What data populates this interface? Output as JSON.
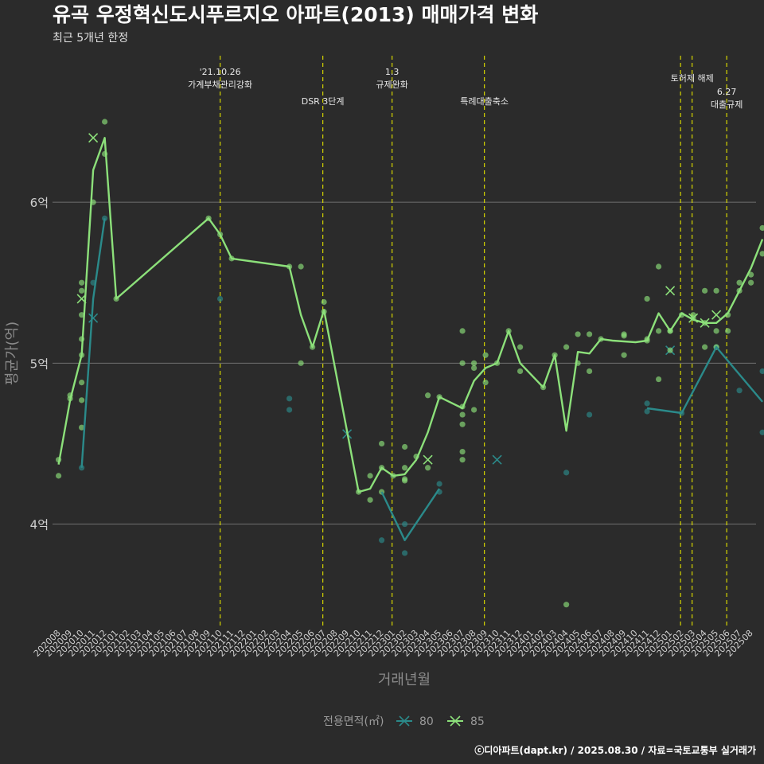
{
  "title": "유곡 우정혁신도시푸르지오 아파트(2013) 매매가격 변화",
  "subtitle": "최근 5개년 한정",
  "caption": "ⓒ디아파트(dapt.kr) / 2025.08.30 / 자료=국토교통부 실거래가",
  "colors": {
    "background": "#2b2b2b",
    "grid": "#707070",
    "vline": "#d4d400",
    "s80": "#2b8a8a",
    "s85": "#8ce07a"
  },
  "chart_data": {
    "type": "line",
    "xlabel": "거래년월",
    "ylabel": "평균가(억)",
    "ylim": [
      3.35,
      6.95
    ],
    "y_ticks": [
      {
        "v": 4,
        "label": "4억"
      },
      {
        "v": 5,
        "label": "5억"
      },
      {
        "v": 6,
        "label": "6억"
      }
    ],
    "categories": [
      "202008",
      "202009",
      "202010",
      "202011",
      "202012",
      "202101",
      "202102",
      "202103",
      "202104",
      "202105",
      "202106",
      "202107",
      "202108",
      "202109",
      "202110",
      "202111",
      "202112",
      "202201",
      "202202",
      "202203",
      "202204",
      "202205",
      "202206",
      "202207",
      "202208",
      "202209",
      "202210",
      "202211",
      "202212",
      "202301",
      "202302",
      "202303",
      "202304",
      "202305",
      "202306",
      "202307",
      "202308",
      "202309",
      "202310",
      "202311",
      "202312",
      "202401",
      "202402",
      "202403",
      "202404",
      "202405",
      "202406",
      "202407",
      "202408",
      "202409",
      "202410",
      "202411",
      "202412",
      "202501",
      "202502",
      "202503",
      "202504",
      "202505",
      "202506",
      "202507",
      "202508"
    ],
    "legend_title": "전용면적(㎡)",
    "series": [
      {
        "name": "80",
        "color": "#2b8a8a",
        "line": [
          [
            2,
            4.35
          ],
          [
            3,
            5.4
          ],
          [
            4,
            5.9
          ],
          null,
          [
            28,
            4.2
          ],
          [
            30,
            3.9
          ],
          [
            33,
            4.22
          ],
          null,
          [
            51,
            4.72
          ],
          [
            54,
            4.69
          ],
          [
            57,
            5.1
          ],
          [
            61,
            4.76
          ]
        ],
        "points": [
          [
            2,
            4.35
          ],
          [
            3,
            5.5
          ],
          [
            4,
            5.9
          ],
          [
            14,
            5.4
          ],
          [
            20,
            4.78
          ],
          [
            20,
            4.71
          ],
          [
            28,
            3.9
          ],
          [
            30,
            4.0
          ],
          [
            30,
            3.82
          ],
          [
            33,
            4.25
          ],
          [
            33,
            4.2
          ],
          [
            44,
            4.32
          ],
          [
            46,
            4.68
          ],
          [
            51,
            4.75
          ],
          [
            51,
            4.7
          ],
          [
            54,
            4.69
          ],
          [
            57,
            5.1
          ],
          [
            59,
            4.83
          ],
          [
            61,
            4.95
          ],
          [
            61,
            4.57
          ]
        ],
        "crosses": [
          [
            3,
            5.28
          ],
          [
            25,
            4.56
          ],
          [
            38,
            4.4
          ],
          [
            53,
            5.08
          ]
        ]
      },
      {
        "name": "85",
        "color": "#8ce07a",
        "line": [
          [
            0,
            4.37
          ],
          [
            1,
            4.77
          ],
          [
            2,
            5.05
          ],
          [
            3,
            6.2
          ],
          [
            4,
            6.4
          ],
          [
            5,
            5.4
          ],
          [
            13,
            5.9
          ],
          [
            14,
            5.8
          ],
          [
            15,
            5.65
          ],
          [
            20,
            5.6
          ],
          [
            21,
            5.3
          ],
          [
            22,
            5.1
          ],
          [
            23,
            5.33
          ],
          [
            26,
            4.2
          ],
          [
            27,
            4.22
          ],
          [
            28,
            4.35
          ],
          [
            29,
            4.3
          ],
          [
            30,
            4.31
          ],
          [
            31,
            4.4
          ],
          [
            32,
            4.57
          ],
          [
            33,
            4.79
          ],
          [
            35,
            4.72
          ],
          [
            36,
            4.89
          ],
          [
            37,
            4.97
          ],
          [
            38,
            5.0
          ],
          [
            39,
            5.2
          ],
          [
            40,
            5.0
          ],
          [
            42,
            4.85
          ],
          [
            43,
            5.05
          ],
          [
            44,
            4.58
          ],
          [
            45,
            5.07
          ],
          [
            46,
            5.06
          ],
          [
            47,
            5.15
          ],
          [
            48,
            5.14
          ],
          [
            50,
            5.13
          ],
          [
            51,
            5.14
          ],
          [
            52,
            5.31
          ],
          [
            53,
            5.2
          ],
          [
            54,
            5.31
          ],
          [
            55,
            5.27
          ],
          [
            56,
            5.25
          ],
          [
            57,
            5.25
          ],
          [
            58,
            5.31
          ],
          [
            59,
            5.45
          ],
          [
            60,
            5.59
          ],
          [
            61,
            5.77
          ]
        ],
        "points": [
          [
            0,
            4.4
          ],
          [
            0,
            4.3
          ],
          [
            1,
            4.8
          ],
          [
            1,
            4.78
          ],
          [
            2,
            5.5
          ],
          [
            2,
            5.45
          ],
          [
            2,
            5.3
          ],
          [
            2,
            5.15
          ],
          [
            2,
            5.05
          ],
          [
            2,
            4.88
          ],
          [
            2,
            4.77
          ],
          [
            2,
            4.6
          ],
          [
            3,
            6.0
          ],
          [
            4,
            6.5
          ],
          [
            4,
            6.3
          ],
          [
            5,
            5.4
          ],
          [
            13,
            5.9
          ],
          [
            14,
            5.8
          ],
          [
            15,
            5.65
          ],
          [
            20,
            5.6
          ],
          [
            21,
            5.6
          ],
          [
            21,
            5.0
          ],
          [
            22,
            5.1
          ],
          [
            23,
            5.38
          ],
          [
            23,
            5.32
          ],
          [
            26,
            4.2
          ],
          [
            27,
            4.3
          ],
          [
            27,
            4.15
          ],
          [
            28,
            4.5
          ],
          [
            28,
            4.35
          ],
          [
            28,
            4.2
          ],
          [
            29,
            4.3
          ],
          [
            30,
            4.48
          ],
          [
            30,
            4.35
          ],
          [
            30,
            4.28
          ],
          [
            30,
            4.27
          ],
          [
            31,
            4.42
          ],
          [
            32,
            4.8
          ],
          [
            32,
            4.35
          ],
          [
            33,
            4.79
          ],
          [
            35,
            5.2
          ],
          [
            35,
            5.0
          ],
          [
            35,
            4.73
          ],
          [
            35,
            4.68
          ],
          [
            35,
            4.62
          ],
          [
            35,
            4.45
          ],
          [
            35,
            4.4
          ],
          [
            36,
            5.0
          ],
          [
            36,
            4.97
          ],
          [
            36,
            4.71
          ],
          [
            37,
            5.05
          ],
          [
            37,
            4.88
          ],
          [
            38,
            5.0
          ],
          [
            39,
            5.2
          ],
          [
            40,
            5.1
          ],
          [
            40,
            4.95
          ],
          [
            42,
            4.85
          ],
          [
            43,
            5.05
          ],
          [
            44,
            5.1
          ],
          [
            44,
            3.5
          ],
          [
            45,
            5.18
          ],
          [
            45,
            5.0
          ],
          [
            46,
            5.18
          ],
          [
            46,
            4.95
          ],
          [
            47,
            5.15
          ],
          [
            49,
            5.18
          ],
          [
            49,
            5.17
          ],
          [
            49,
            5.05
          ],
          [
            51,
            5.4
          ],
          [
            51,
            5.15
          ],
          [
            51,
            5.14
          ],
          [
            52,
            5.6
          ],
          [
            52,
            5.2
          ],
          [
            52,
            4.9
          ],
          [
            53,
            5.2
          ],
          [
            53,
            5.2
          ],
          [
            53,
            5.08
          ],
          [
            54,
            5.3
          ],
          [
            55,
            5.3
          ],
          [
            55,
            5.28
          ],
          [
            56,
            5.45
          ],
          [
            56,
            5.25
          ],
          [
            56,
            5.1
          ],
          [
            57,
            5.45
          ],
          [
            57,
            5.2
          ],
          [
            57,
            5.1
          ],
          [
            58,
            5.3
          ],
          [
            58,
            5.2
          ],
          [
            59,
            5.5
          ],
          [
            59,
            5.45
          ],
          [
            60,
            5.55
          ],
          [
            60,
            5.5
          ],
          [
            61,
            5.84
          ],
          [
            61,
            5.68
          ]
        ],
        "crosses": [
          [
            2,
            5.4
          ],
          [
            3,
            6.4
          ],
          [
            32,
            4.4
          ],
          [
            53,
            5.45
          ],
          [
            55,
            5.28
          ],
          [
            56,
            5.25
          ],
          [
            57,
            5.3
          ]
        ]
      }
    ],
    "events": [
      {
        "x": 14.0,
        "label": [
          "'21.10.26",
          "가계부채관리강화"
        ],
        "level": 1
      },
      {
        "x": 22.9,
        "label": [
          "DSR 3단계"
        ],
        "level": 2
      },
      {
        "x": 28.9,
        "label": [
          "1.3",
          "규제완화"
        ],
        "level": 1
      },
      {
        "x": 36.9,
        "label": [
          "특례대출축소"
        ],
        "level": 2
      },
      {
        "x": 53.9,
        "label": [],
        "level": 0
      },
      {
        "x": 54.9,
        "label": [
          "토허제 해제"
        ],
        "level": 1
      },
      {
        "x": 57.9,
        "label": [
          "6.27",
          "대출규제"
        ],
        "level": 2
      }
    ]
  }
}
